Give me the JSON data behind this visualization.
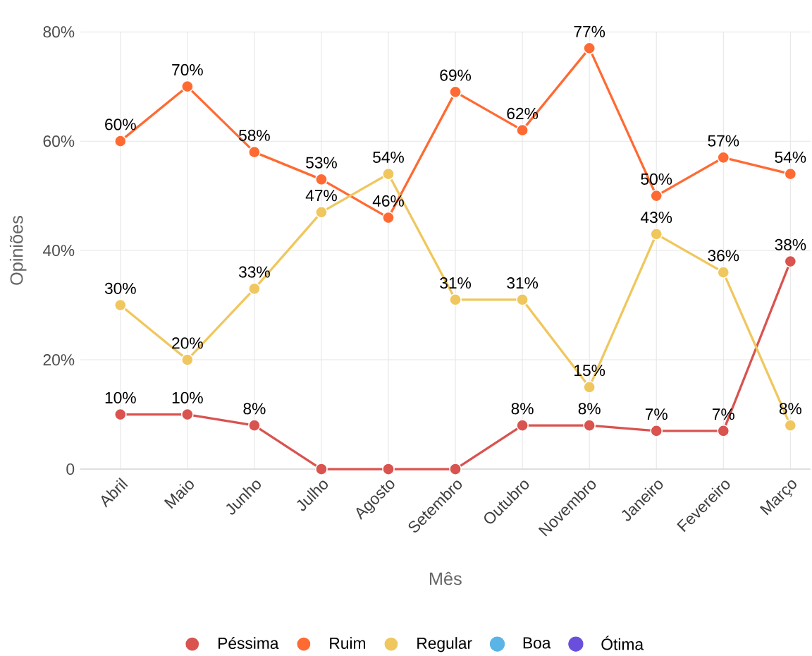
{
  "chart_data": {
    "type": "line",
    "xlabel": "Mês",
    "ylabel": "Opiniões",
    "categories": [
      "Abril",
      "Maio",
      "Junho",
      "Julho",
      "Agosto",
      "Setembro",
      "Outubro",
      "Novembro",
      "Janeiro",
      "Fevereiro",
      "Março"
    ],
    "series": [
      {
        "name": "Péssima",
        "color": "#d9534f",
        "values": [
          10,
          10,
          8,
          0,
          0,
          0,
          8,
          8,
          7,
          7,
          38
        ],
        "value_labels": [
          "10%",
          "10%",
          "8%",
          null,
          null,
          null,
          "8%",
          "8%",
          "7%",
          "7%",
          "38%"
        ]
      },
      {
        "name": "Ruim",
        "color": "#ff6a33",
        "values": [
          60,
          70,
          58,
          53,
          46,
          69,
          62,
          77,
          50,
          57,
          54
        ],
        "value_labels": [
          "60%",
          "70%",
          "58%",
          "53%",
          "46%",
          "69%",
          "62%",
          "77%",
          "50%",
          "57%",
          "54%"
        ]
      },
      {
        "name": "Regular",
        "color": "#f0c75e",
        "values": [
          30,
          20,
          33,
          47,
          54,
          31,
          31,
          15,
          43,
          36,
          8
        ],
        "value_labels": [
          "30%",
          "20%",
          "33%",
          "47%",
          "54%",
          "31%",
          "31%",
          "15%",
          "43%",
          "36%",
          "8%"
        ]
      },
      {
        "name": "Boa",
        "color": "#5ab4e5",
        "values": [
          null,
          null,
          null,
          null,
          null,
          null,
          null,
          null,
          null,
          null,
          null
        ]
      },
      {
        "name": "Ótima",
        "color": "#6a4fdc",
        "values": [
          null,
          null,
          null,
          null,
          null,
          null,
          null,
          null,
          null,
          null,
          null
        ]
      }
    ],
    "ylim": [
      0,
      80
    ],
    "yticks": [
      0,
      {
        "value": 20,
        "label": "20%"
      },
      {
        "value": 40,
        "label": "40%"
      },
      {
        "value": 60,
        "label": "60%"
      },
      {
        "value": 80,
        "label": "80%"
      }
    ],
    "grid": true,
    "legend": "bottom",
    "marker": "circle",
    "line_style": "solid"
  }
}
